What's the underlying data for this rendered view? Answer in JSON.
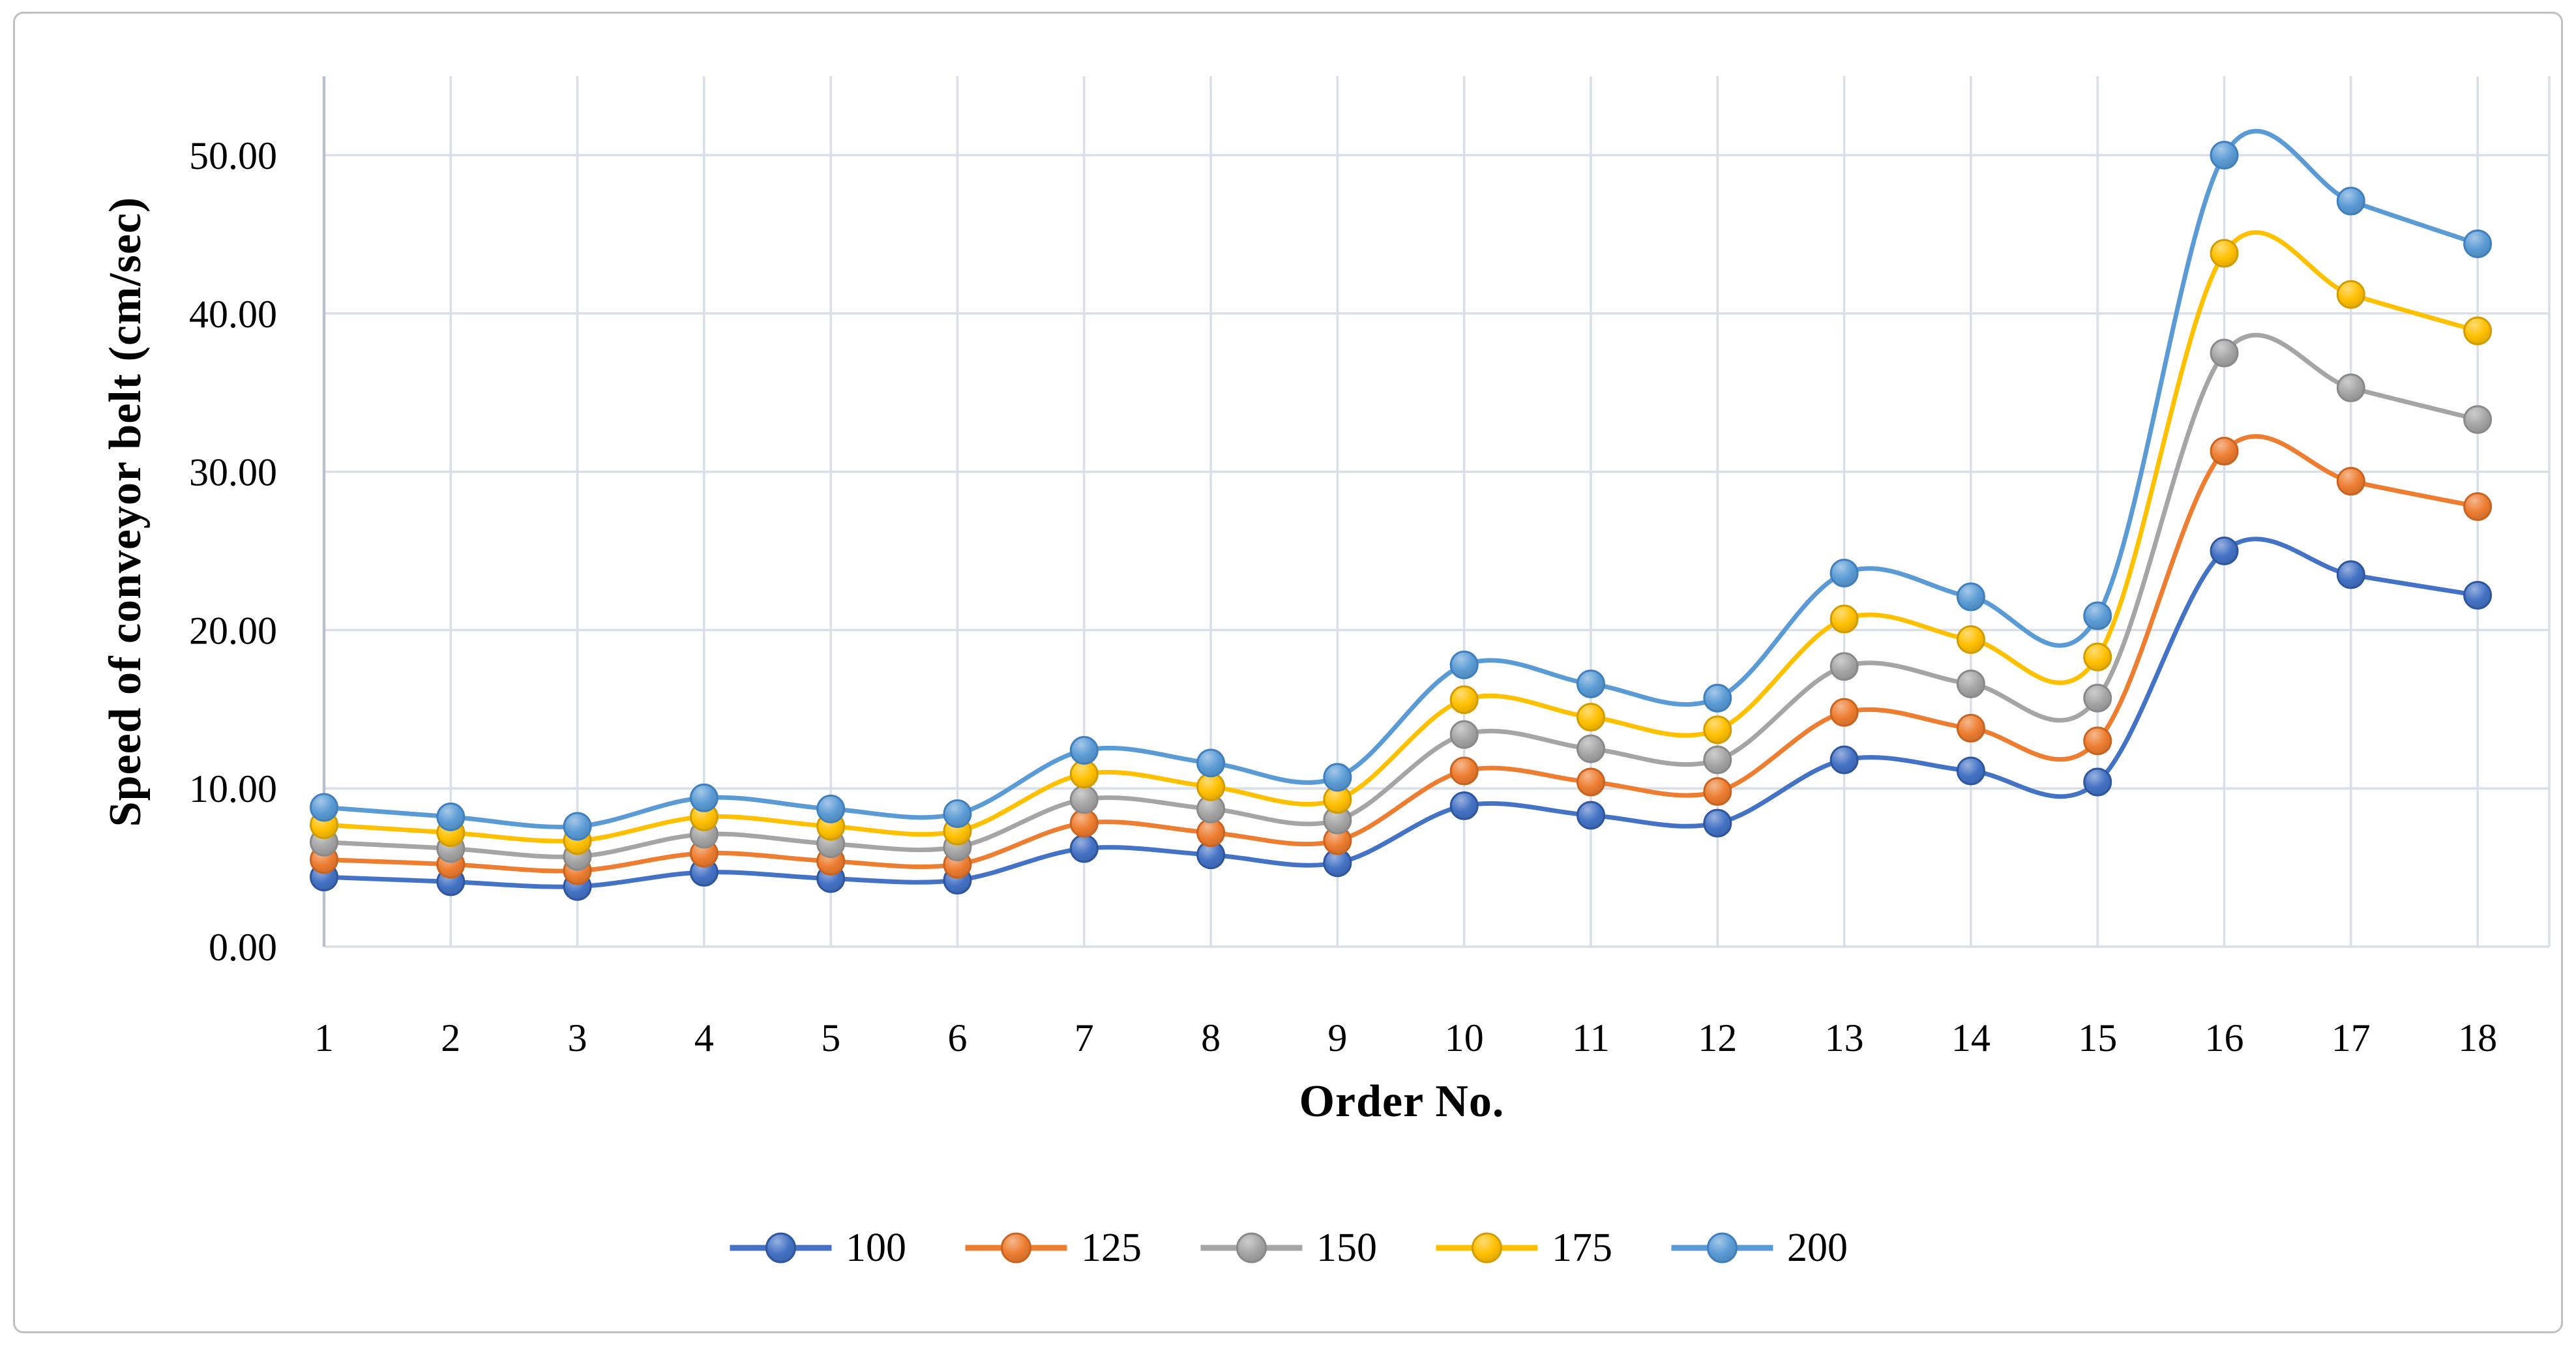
{
  "figure": {
    "background": "#ffffff",
    "border_color": "#c0c0c0"
  },
  "colors": {
    "gridline": "#dadee6",
    "axis_line": "#b9c1cf",
    "text": "#000000"
  },
  "chart_data": {
    "type": "line",
    "title": "",
    "xlabel": "Order No.",
    "ylabel": "Speed of conveyor belt (cm/sec)",
    "x_categories": [
      "1",
      "2",
      "3",
      "4",
      "5",
      "6",
      "7",
      "8",
      "9",
      "10",
      "11",
      "12",
      "13",
      "14",
      "15",
      "16",
      "17",
      "18"
    ],
    "y_ticks": [
      "0.00",
      "10.00",
      "20.00",
      "30.00",
      "40.00",
      "50.00"
    ],
    "y_tick_values": [
      0,
      10,
      20,
      30,
      40,
      50
    ],
    "ylim": [
      0,
      55
    ],
    "grid": true,
    "line_style": "smooth",
    "marker": "circle",
    "legend_position": "bottom",
    "series": [
      {
        "name": "100",
        "color": "#4472C4",
        "edge": "#2e569e",
        "values": [
          4.4,
          4.1,
          3.8,
          4.7,
          4.3,
          4.2,
          6.2,
          5.8,
          5.3,
          8.9,
          8.3,
          7.8,
          11.8,
          11.1,
          10.4,
          25.0,
          23.5,
          22.2
        ]
      },
      {
        "name": "125",
        "color": "#ED7D31",
        "edge": "#c9631f",
        "values": [
          5.5,
          5.2,
          4.8,
          5.9,
          5.4,
          5.2,
          7.8,
          7.2,
          6.7,
          11.1,
          10.4,
          9.8,
          14.8,
          13.8,
          13.0,
          31.3,
          29.4,
          27.8
        ]
      },
      {
        "name": "150",
        "color": "#A5A5A5",
        "edge": "#898989",
        "values": [
          6.6,
          6.2,
          5.7,
          7.1,
          6.5,
          6.3,
          9.3,
          8.7,
          8.0,
          13.4,
          12.5,
          11.8,
          17.7,
          16.6,
          15.7,
          37.5,
          35.3,
          33.3
        ]
      },
      {
        "name": "175",
        "color": "#FFC000",
        "edge": "#d29b00",
        "values": [
          7.7,
          7.2,
          6.7,
          8.2,
          7.6,
          7.3,
          10.9,
          10.1,
          9.3,
          15.6,
          14.5,
          13.7,
          20.7,
          19.4,
          18.3,
          43.8,
          41.2,
          38.9
        ]
      },
      {
        "name": "200",
        "color": "#5B9BD5",
        "edge": "#3f7fbe",
        "values": [
          8.8,
          8.2,
          7.6,
          9.4,
          8.7,
          8.4,
          12.4,
          11.6,
          10.7,
          17.8,
          16.6,
          15.7,
          23.6,
          22.1,
          20.9,
          50.0,
          47.1,
          44.4
        ]
      }
    ]
  }
}
